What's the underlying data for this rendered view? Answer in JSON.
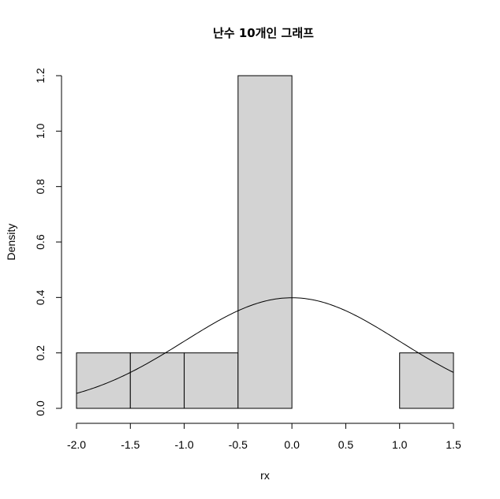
{
  "chart_data": {
    "type": "bar",
    "title": "난수 10개인 그래프",
    "xlabel": "rx",
    "ylabel": "Density",
    "xlim": [
      -2.0,
      1.5
    ],
    "ylim": [
      0,
      1.2
    ],
    "grid": false,
    "bins": [
      {
        "start": -2.0,
        "end": -1.5,
        "density": 0.2
      },
      {
        "start": -1.5,
        "end": -1.0,
        "density": 0.2
      },
      {
        "start": -1.0,
        "end": -0.5,
        "density": 0.2
      },
      {
        "start": -0.5,
        "end": 0.0,
        "density": 1.2
      },
      {
        "start": 0.0,
        "end": 0.5,
        "density": 0.0
      },
      {
        "start": 0.5,
        "end": 1.0,
        "density": 0.0
      },
      {
        "start": 1.0,
        "end": 1.5,
        "density": 0.2
      }
    ],
    "overlay_curve": {
      "distribution": "standard normal density",
      "mean": 0,
      "sd": 1
    },
    "x_ticks": [
      -2.0,
      -1.5,
      -1.0,
      -0.5,
      0.0,
      0.5,
      1.0,
      1.5
    ],
    "x_tick_labels": [
      "-2.0",
      "-1.5",
      "-1.0",
      "-0.5",
      "0.0",
      "0.5",
      "1.0",
      "1.5"
    ],
    "y_ticks": [
      0.0,
      0.2,
      0.4,
      0.6,
      0.8,
      1.0,
      1.2
    ],
    "y_tick_labels": [
      "0.0",
      "0.2",
      "0.4",
      "0.6",
      "0.8",
      "1.0",
      "1.2"
    ]
  }
}
